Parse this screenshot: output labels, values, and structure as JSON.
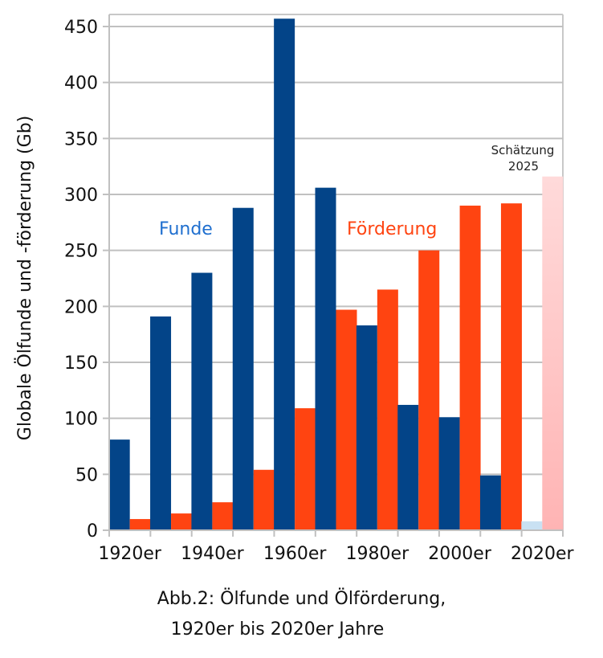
{
  "chart_data": {
    "type": "bar",
    "title": "Abb.2: Ölfunde und Ölförderung,",
    "subtitle": "1920er bis 2020er Jahre",
    "xlabel": "",
    "ylabel": "Globale Ölfunde und -förderung (Gb)",
    "ylim": [
      0,
      450
    ],
    "yticks": [
      0,
      50,
      100,
      150,
      200,
      250,
      300,
      350,
      400,
      450
    ],
    "grid": true,
    "categories": [
      "1920er",
      "1930er",
      "1940er",
      "1950er",
      "1960er",
      "1970er",
      "1980er",
      "1990er",
      "2000er",
      "2010er",
      "2020er"
    ],
    "xtick_labels": [
      "1920er",
      "",
      "1940er",
      "",
      "1960er",
      "",
      "1980er",
      "",
      "2000er",
      "",
      "2020er"
    ],
    "series": [
      {
        "name": "Funde",
        "color": "#034488",
        "estimate_color": "#c9e1f3",
        "values": [
          81,
          191,
          230,
          288,
          457,
          306,
          183,
          112,
          101,
          49,
          8
        ]
      },
      {
        "name": "Förderung",
        "color": "#ff4411",
        "estimate_color": "#ffb4b4",
        "values": [
          10,
          15,
          25,
          54,
          109,
          197,
          215,
          250,
          290,
          292,
          316
        ]
      }
    ],
    "annotations": {
      "funde_label": "Funde",
      "foerderung_label": "Förderung",
      "estimate_line1": "Schätzung",
      "estimate_line2": "2025"
    },
    "estimate_category": "2020er"
  }
}
